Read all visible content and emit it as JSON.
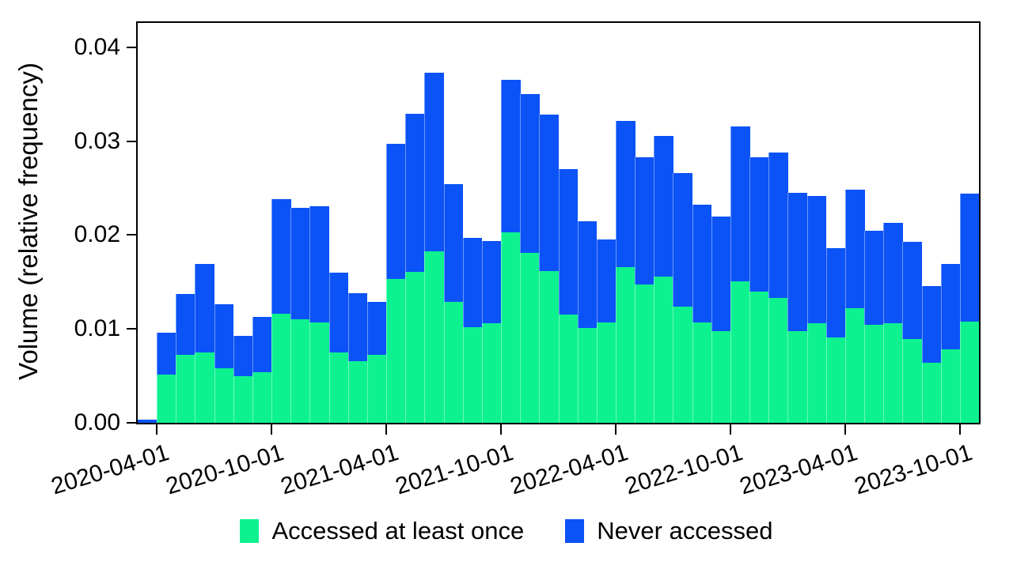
{
  "chart_data": {
    "type": "bar",
    "stacked": true,
    "title": "",
    "xlabel": "",
    "ylabel": "Volume (relative frequency)",
    "background": "#ffffff",
    "grid": false,
    "legend_position": "bottom",
    "ylim": [
      0,
      0.0426
    ],
    "yticks": [
      0,
      0.01,
      0.02,
      0.03,
      0.04
    ],
    "ytick_labels": [
      "0.00",
      "0.01",
      "0.02",
      "0.03",
      "0.04"
    ],
    "categories": [
      "2020-03-01",
      "2020-04-01",
      "2020-05-01",
      "2020-06-01",
      "2020-07-01",
      "2020-08-01",
      "2020-09-01",
      "2020-10-01",
      "2020-11-01",
      "2020-12-01",
      "2021-01-01",
      "2021-02-01",
      "2021-03-01",
      "2021-04-01",
      "2021-05-01",
      "2021-06-01",
      "2021-07-01",
      "2021-08-01",
      "2021-09-01",
      "2021-10-01",
      "2021-11-01",
      "2021-12-01",
      "2022-01-01",
      "2022-02-01",
      "2022-03-01",
      "2022-04-01",
      "2022-05-01",
      "2022-06-01",
      "2022-07-01",
      "2022-08-01",
      "2022-09-01",
      "2022-10-01",
      "2022-11-01",
      "2022-12-01",
      "2023-01-01",
      "2023-02-01",
      "2023-03-01",
      "2023-04-01",
      "2023-05-01",
      "2023-06-01",
      "2023-07-01",
      "2023-08-01",
      "2023-09-01",
      "2023-10-01"
    ],
    "xtick_indices": [
      1,
      7,
      13,
      19,
      25,
      31,
      37,
      43
    ],
    "xtick_labels": [
      "2020-04-01",
      "2020-10-01",
      "2021-04-01",
      "2021-10-01",
      "2022-04-01",
      "2022-10-01",
      "2023-04-01",
      "2023-10-01"
    ],
    "series": [
      {
        "name": "Accessed at least once",
        "color": "#0DF28F",
        "values": [
          0.0,
          0.0051,
          0.0072,
          0.0075,
          0.0058,
          0.005,
          0.0054,
          0.0116,
          0.011,
          0.0107,
          0.0075,
          0.0066,
          0.0072,
          0.0153,
          0.0161,
          0.0183,
          0.0129,
          0.0102,
          0.0106,
          0.0203,
          0.0181,
          0.0162,
          0.0115,
          0.0101,
          0.0107,
          0.0166,
          0.0147,
          0.0156,
          0.0124,
          0.0107,
          0.0098,
          0.0151,
          0.014,
          0.0133,
          0.0098,
          0.0106,
          0.0091,
          0.0122,
          0.0104,
          0.0106,
          0.0089,
          0.0064,
          0.0078,
          0.0108
        ]
      },
      {
        "name": "Never accessed",
        "color": "#0B53F7",
        "values": [
          0.0003,
          0.0045,
          0.0065,
          0.0094,
          0.0068,
          0.0043,
          0.0059,
          0.0122,
          0.0119,
          0.0124,
          0.0085,
          0.0072,
          0.0057,
          0.0144,
          0.0168,
          0.019,
          0.0125,
          0.0095,
          0.0088,
          0.0162,
          0.0169,
          0.0166,
          0.0155,
          0.0114,
          0.0088,
          0.0156,
          0.0136,
          0.015,
          0.0142,
          0.0125,
          0.0122,
          0.0165,
          0.0143,
          0.0155,
          0.0147,
          0.0136,
          0.0095,
          0.0126,
          0.0101,
          0.0107,
          0.0104,
          0.0082,
          0.0091,
          0.0136
        ]
      }
    ]
  }
}
